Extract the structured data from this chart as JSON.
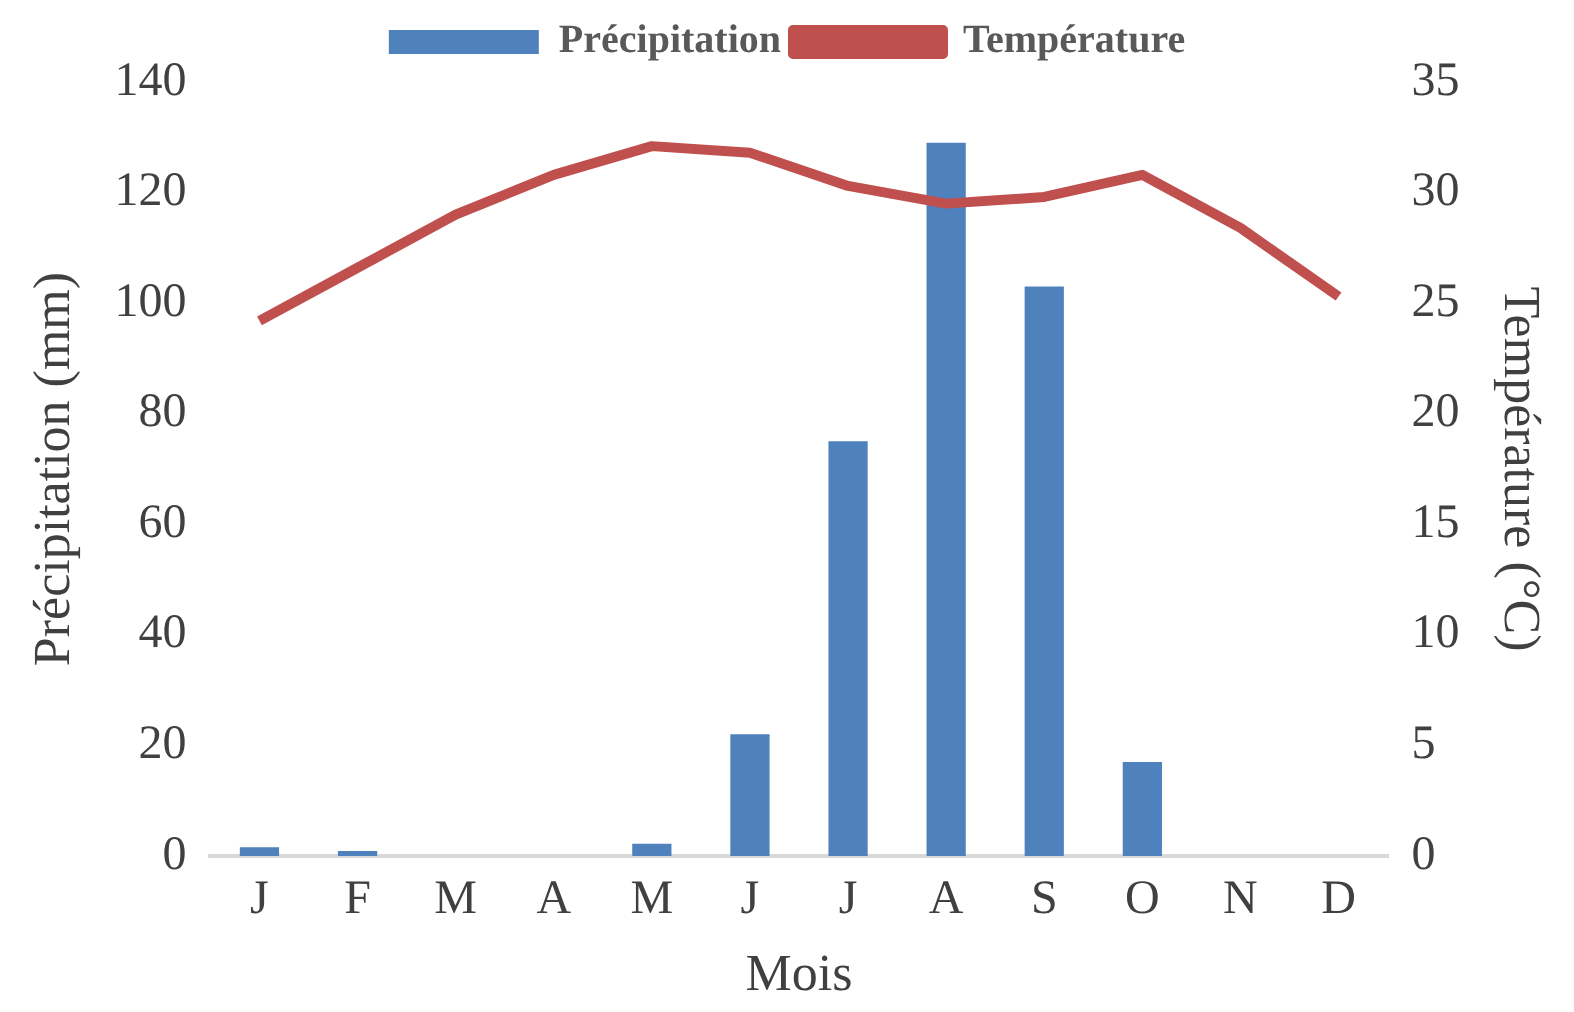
{
  "chart_data": {
    "type": "bar",
    "xlabel": "Mois",
    "ylabel": "Précipitation (mm)",
    "y2label": "Température (°C)",
    "categories": [
      "J",
      "F",
      "M",
      "A",
      "M",
      "J",
      "J",
      "A",
      "S",
      "O",
      "N",
      "D"
    ],
    "series": [
      {
        "name": "Précipitation",
        "color": "#4f81bd",
        "values": [
          1.6,
          0.9,
          0,
          0,
          2.2,
          22,
          75,
          129,
          103,
          17,
          0,
          0
        ]
      },
      {
        "name": "Température",
        "type": "line",
        "axis": "y2",
        "color": "#c0504d",
        "values": [
          24.2,
          26.6,
          29.0,
          30.8,
          32.1,
          31.8,
          30.3,
          29.5,
          29.8,
          30.8,
          28.4,
          25.3
        ]
      }
    ],
    "ylim": [
      0,
      140
    ],
    "yticks": [
      0,
      20,
      40,
      60,
      80,
      100,
      120,
      140
    ],
    "y2lim": [
      0,
      35
    ],
    "y2ticks": [
      0,
      5,
      10,
      15,
      20,
      25,
      30,
      35
    ],
    "grid": false,
    "legend": "top",
    "marker": "none"
  }
}
